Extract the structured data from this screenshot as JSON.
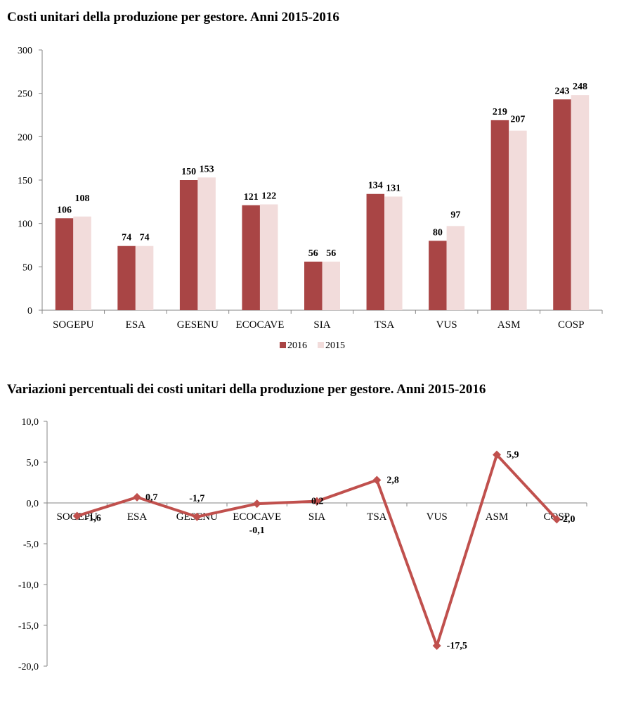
{
  "chart_data": [
    {
      "type": "bar",
      "title": "Costi unitari della produzione per gestore. Anni 2015-2016",
      "categories": [
        "SOGEPU",
        "ESA",
        "GESENU",
        "ECOCAVE",
        "SIA",
        "TSA",
        "VUS",
        "ASM",
        "COSP"
      ],
      "series": [
        {
          "name": "2016",
          "values": [
            106,
            74,
            150,
            121,
            56,
            134,
            80,
            219,
            243
          ],
          "color": "#a94545"
        },
        {
          "name": "2015",
          "values": [
            108,
            74,
            153,
            122,
            56,
            131,
            97,
            207,
            248
          ],
          "color": "#f2dcdb"
        }
      ],
      "ylim": [
        0,
        300
      ],
      "yticks": [
        0,
        50,
        100,
        150,
        200,
        250,
        300
      ],
      "grid": false,
      "legend": "bottom"
    },
    {
      "type": "line",
      "title": "Variazioni percentuali dei costi unitari della produzione per gestore. Anni 2015-2016",
      "categories": [
        "SOGEPU",
        "ESA",
        "GESENU",
        "ECOCAVE",
        "SIA",
        "TSA",
        "VUS",
        "ASM",
        "COSP"
      ],
      "series": [
        {
          "values": [
            -1.6,
            0.7,
            -1.7,
            -0.1,
            0.2,
            2.8,
            -17.5,
            5.9,
            -2.0
          ],
          "labels": [
            "-1,6",
            "0,7",
            "-1,7",
            "-0,1",
            "0,2",
            "2,8",
            "-17,5",
            "5,9",
            "-2,0"
          ],
          "color": "#c0504d"
        }
      ],
      "ylim": [
        -20,
        10
      ],
      "yticks": [
        10,
        5,
        0,
        -5,
        -10,
        -15,
        -20
      ],
      "yticklabels": [
        "10,0",
        "5,0",
        "0,0",
        "-5,0",
        "-10,0",
        "-15,0",
        "-20,0"
      ],
      "grid": false,
      "legend": "none"
    }
  ]
}
